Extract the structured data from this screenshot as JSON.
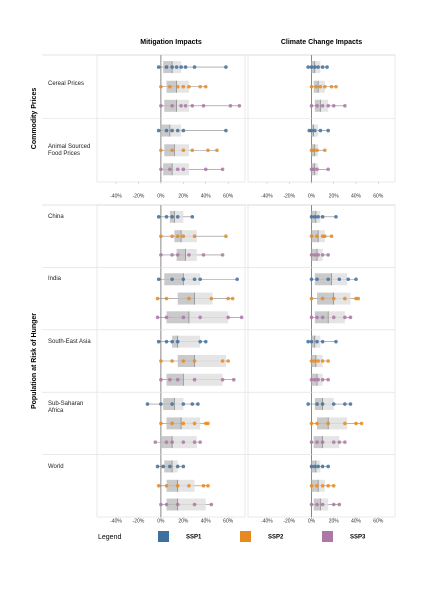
{
  "chart_data": {
    "type": "box",
    "column_titles": [
      "Mitigation Impacts",
      "Climate Change Impacts"
    ],
    "xlim": [
      -57,
      75
    ],
    "xticks": [
      {
        "value": -40,
        "label": "-40%"
      },
      {
        "value": -20,
        "label": "-20%"
      },
      {
        "value": 0,
        "label": "0%"
      },
      {
        "value": 20,
        "label": "20%"
      },
      {
        "value": 40,
        "label": "40%"
      },
      {
        "value": 60,
        "label": "60%"
      }
    ],
    "legend_title": "Legend",
    "series": [
      {
        "name": "SSP1",
        "color": "#3f6f9e"
      },
      {
        "name": "SSP2",
        "color": "#e8891f"
      },
      {
        "name": "SSP3",
        "color": "#ad77a6"
      }
    ],
    "sections": [
      {
        "title": "Commodity Prices",
        "rows": [
          {
            "label": "Cereal Prices",
            "panels": [
              [
                {
                  "values": [
                    -2,
                    5,
                    10,
                    14,
                    18,
                    22,
                    30,
                    58
                  ],
                  "box": [
                    2,
                    10,
                    18
                  ]
                },
                {
                  "values": [
                    0,
                    8,
                    15,
                    20,
                    25,
                    35,
                    40
                  ],
                  "box": [
                    5,
                    14,
                    25
                  ]
                },
                {
                  "values": [
                    0,
                    10,
                    18,
                    22,
                    28,
                    38,
                    62,
                    70
                  ],
                  "box": [
                    3,
                    14,
                    25
                  ]
                }
              ],
              [
                {
                  "values": [
                    -3,
                    0,
                    3,
                    6,
                    10,
                    14
                  ],
                  "box": [
                    0,
                    3,
                    8
                  ]
                },
                {
                  "values": [
                    0,
                    4,
                    8,
                    12,
                    18,
                    22
                  ],
                  "box": [
                    2,
                    6,
                    12
                  ]
                },
                {
                  "values": [
                    0,
                    5,
                    10,
                    15,
                    20,
                    30
                  ],
                  "box": [
                    3,
                    8,
                    15
                  ]
                }
              ]
            ]
          },
          {
            "label": "Animal Sourced Food Prices",
            "panels": [
              [
                {
                  "values": [
                    -2,
                    5,
                    10,
                    15,
                    20,
                    58
                  ],
                  "box": [
                    0,
                    8,
                    18
                  ]
                },
                {
                  "values": [
                    0,
                    10,
                    20,
                    28,
                    42,
                    50
                  ],
                  "box": [
                    3,
                    12,
                    25
                  ]
                },
                {
                  "values": [
                    0,
                    8,
                    15,
                    20,
                    40,
                    55
                  ],
                  "box": [
                    2,
                    10,
                    25
                  ]
                }
              ],
              [
                {
                  "values": [
                    -2,
                    0,
                    3,
                    8,
                    15
                  ],
                  "box": [
                    0,
                    2,
                    6
                  ]
                },
                {
                  "values": [
                    0,
                    2,
                    5,
                    12
                  ],
                  "box": [
                    0,
                    3,
                    6
                  ]
                },
                {
                  "values": [
                    0,
                    2,
                    5,
                    15
                  ],
                  "box": [
                    0,
                    3,
                    6
                  ]
                }
              ]
            ]
          }
        ]
      },
      {
        "title": "Population at Risk of Hunger",
        "rows": [
          {
            "label": "China",
            "panels": [
              [
                {
                  "values": [
                    -2,
                    5,
                    10,
                    15,
                    28
                  ],
                  "box": [
                    8,
                    12,
                    20
                  ]
                },
                {
                  "values": [
                    0,
                    10,
                    15,
                    20,
                    30,
                    58
                  ],
                  "box": [
                    12,
                    18,
                    32
                  ]
                },
                {
                  "values": [
                    0,
                    10,
                    15,
                    25,
                    38,
                    55
                  ],
                  "box": [
                    14,
                    22,
                    32
                  ]
                }
              ],
              [
                {
                  "values": [
                    0,
                    3,
                    6,
                    10,
                    22
                  ],
                  "box": [
                    0,
                    4,
                    8
                  ]
                },
                {
                  "values": [
                    0,
                    5,
                    10,
                    12,
                    18
                  ],
                  "box": [
                    0,
                    6,
                    12
                  ]
                },
                {
                  "values": [
                    0,
                    3,
                    6,
                    10,
                    15
                  ],
                  "box": [
                    0,
                    5,
                    10
                  ]
                }
              ]
            ]
          },
          {
            "label": "India",
            "panels": [
              [
                {
                  "values": [
                    -2,
                    10,
                    20,
                    30,
                    35,
                    68
                  ],
                  "box": [
                    3,
                    20,
                    35
                  ]
                },
                {
                  "values": [
                    -3,
                    5,
                    25,
                    45,
                    60,
                    64
                  ],
                  "box": [
                    15,
                    30,
                    46
                  ]
                },
                {
                  "values": [
                    -3,
                    5,
                    20,
                    35,
                    60,
                    72
                  ],
                  "box": [
                    5,
                    25,
                    60
                  ]
                }
              ],
              [
                {
                  "values": [
                    0,
                    5,
                    15,
                    25,
                    33,
                    40
                  ],
                  "box": [
                    3,
                    18,
                    32
                  ]
                },
                {
                  "values": [
                    0,
                    10,
                    20,
                    30,
                    40,
                    42
                  ],
                  "box": [
                    5,
                    20,
                    35
                  ]
                },
                {
                  "values": [
                    0,
                    5,
                    10,
                    20,
                    30,
                    35
                  ],
                  "box": [
                    3,
                    15,
                    30
                  ]
                }
              ]
            ]
          },
          {
            "label": "South-East Asia",
            "panels": [
              [
                {
                  "values": [
                    -2,
                    5,
                    10,
                    15,
                    35,
                    40
                  ],
                  "box": [
                    10,
                    15,
                    35
                  ]
                },
                {
                  "values": [
                    0,
                    10,
                    20,
                    30,
                    55,
                    60
                  ],
                  "box": [
                    15,
                    30,
                    58
                  ]
                },
                {
                  "values": [
                    0,
                    8,
                    15,
                    30,
                    55,
                    65
                  ],
                  "box": [
                    5,
                    20,
                    55
                  ]
                }
              ],
              [
                {
                  "values": [
                    -3,
                    0,
                    5,
                    10,
                    22
                  ],
                  "box": [
                    0,
                    3,
                    8
                  ]
                },
                {
                  "values": [
                    0,
                    3,
                    6,
                    10,
                    15
                  ],
                  "box": [
                    0,
                    4,
                    10
                  ]
                },
                {
                  "values": [
                    0,
                    3,
                    6,
                    10,
                    15
                  ],
                  "box": [
                    0,
                    5,
                    10
                  ]
                }
              ]
            ]
          },
          {
            "label": "Sub-Saharan Africa",
            "panels": [
              [
                {
                  "values": [
                    -12,
                    0,
                    10,
                    20,
                    28,
                    33
                  ],
                  "box": [
                    2,
                    12,
                    20
                  ]
                },
                {
                  "values": [
                    0,
                    10,
                    20,
                    30,
                    40,
                    42
                  ],
                  "box": [
                    5,
                    18,
                    35
                  ]
                },
                {
                  "values": [
                    -5,
                    5,
                    10,
                    20,
                    30,
                    35
                  ],
                  "box": [
                    0,
                    10,
                    32
                  ]
                }
              ],
              [
                {
                  "values": [
                    -3,
                    5,
                    10,
                    20,
                    30,
                    35
                  ],
                  "box": [
                    3,
                    10,
                    20
                  ]
                },
                {
                  "values": [
                    0,
                    5,
                    15,
                    30,
                    40,
                    45
                  ],
                  "box": [
                    5,
                    15,
                    32
                  ]
                },
                {
                  "values": [
                    0,
                    5,
                    10,
                    20,
                    25,
                    30
                  ],
                  "box": [
                    2,
                    10,
                    25
                  ]
                }
              ]
            ]
          },
          {
            "label": "World",
            "panels": [
              [
                {
                  "values": [
                    -3,
                    2,
                    8,
                    15,
                    20
                  ],
                  "box": [
                    3,
                    10,
                    15
                  ]
                },
                {
                  "values": [
                    -2,
                    5,
                    15,
                    25,
                    38,
                    42
                  ],
                  "box": [
                    5,
                    15,
                    30
                  ]
                },
                {
                  "values": [
                    0,
                    5,
                    15,
                    30,
                    45
                  ],
                  "box": [
                    5,
                    15,
                    40
                  ]
                }
              ],
              [
                {
                  "values": [
                    0,
                    3,
                    6,
                    10,
                    15
                  ],
                  "box": [
                    0,
                    4,
                    8
                  ]
                },
                {
                  "values": [
                    0,
                    5,
                    10,
                    15,
                    20
                  ],
                  "box": [
                    0,
                    6,
                    12
                  ]
                },
                {
                  "values": [
                    0,
                    5,
                    10,
                    20,
                    25
                  ],
                  "box": [
                    2,
                    8,
                    15
                  ]
                }
              ]
            ]
          }
        ]
      }
    ]
  }
}
